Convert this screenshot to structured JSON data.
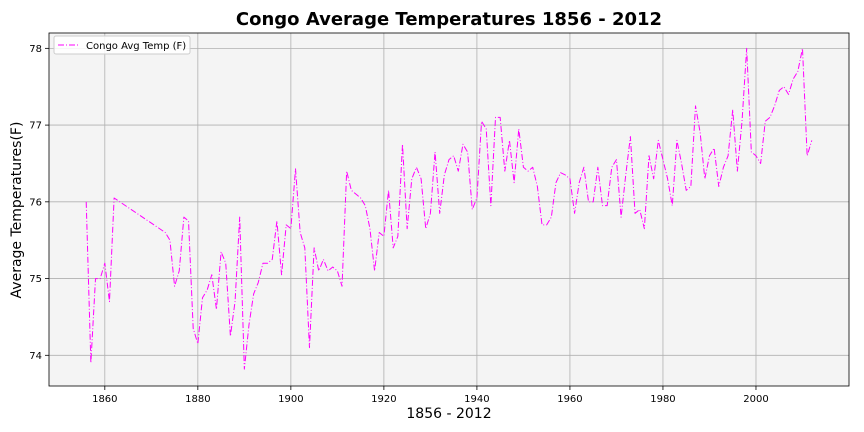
{
  "chart_data": {
    "type": "line",
    "title": "Congo Average Temperatures 1856 - 2012",
    "xlabel": "1856 - 2012",
    "ylabel": "Average Temperatures(F)",
    "xlim": [
      1848,
      2020
    ],
    "ylim": [
      73.6,
      78.2
    ],
    "xticks": [
      1860,
      1880,
      1900,
      1920,
      1940,
      1960,
      1980,
      2000
    ],
    "yticks": [
      74,
      75,
      76,
      77,
      78
    ],
    "grid": true,
    "legend_position": "top-left",
    "line_style": "dash-dot",
    "colors": {
      "line": "#ff00ff",
      "plot_bg": "#f4f4f4",
      "grid": "#b0b0b0"
    },
    "series": [
      {
        "name": "Congo Avg Temp (F)",
        "x": [
          1856,
          1857,
          1858,
          1859,
          1860,
          1861,
          1862,
          1873,
          1874,
          1875,
          1876,
          1877,
          1878,
          1879,
          1880,
          1881,
          1882,
          1883,
          1884,
          1885,
          1886,
          1887,
          1888,
          1889,
          1890,
          1891,
          1892,
          1893,
          1894,
          1895,
          1896,
          1897,
          1898,
          1899,
          1900,
          1901,
          1902,
          1903,
          1904,
          1905,
          1906,
          1907,
          1908,
          1909,
          1910,
          1911,
          1912,
          1913,
          1914,
          1915,
          1916,
          1917,
          1918,
          1919,
          1920,
          1921,
          1922,
          1923,
          1924,
          1925,
          1926,
          1927,
          1928,
          1929,
          1930,
          1931,
          1932,
          1933,
          1934,
          1935,
          1936,
          1937,
          1938,
          1939,
          1940,
          1941,
          1942,
          1943,
          1944,
          1945,
          1946,
          1947,
          1948,
          1949,
          1950,
          1951,
          1952,
          1953,
          1954,
          1955,
          1956,
          1957,
          1958,
          1959,
          1960,
          1961,
          1962,
          1963,
          1964,
          1965,
          1966,
          1967,
          1968,
          1969,
          1970,
          1971,
          1972,
          1973,
          1974,
          1975,
          1976,
          1977,
          1978,
          1979,
          1980,
          1981,
          1982,
          1983,
          1984,
          1985,
          1986,
          1987,
          1988,
          1989,
          1990,
          1991,
          1992,
          1993,
          1994,
          1995,
          1996,
          1997,
          1998,
          1999,
          2000,
          2001,
          2002,
          2003,
          2004,
          2005,
          2006,
          2007,
          2008,
          2009,
          2010,
          2011,
          2012
        ],
        "y": [
          76.0,
          73.9,
          75.0,
          75.0,
          75.2,
          74.7,
          76.05,
          75.6,
          75.5,
          74.9,
          75.1,
          75.8,
          75.75,
          74.35,
          74.15,
          74.75,
          74.85,
          75.05,
          74.6,
          75.35,
          75.2,
          74.25,
          74.7,
          75.8,
          73.82,
          74.4,
          74.8,
          74.95,
          75.2,
          75.2,
          75.25,
          75.75,
          75.05,
          75.7,
          75.65,
          76.43,
          75.6,
          75.4,
          74.1,
          75.4,
          75.1,
          75.25,
          75.1,
          75.15,
          75.1,
          74.9,
          76.4,
          76.15,
          76.1,
          76.05,
          75.95,
          75.65,
          75.1,
          75.6,
          75.55,
          76.15,
          75.4,
          75.55,
          76.75,
          75.65,
          76.3,
          76.45,
          76.3,
          75.65,
          75.85,
          76.65,
          75.85,
          76.35,
          76.55,
          76.6,
          76.4,
          76.75,
          76.65,
          75.9,
          76.05,
          77.05,
          76.95,
          75.95,
          77.1,
          77.1,
          76.4,
          76.8,
          76.25,
          76.95,
          76.45,
          76.4,
          76.45,
          76.2,
          75.7,
          75.7,
          75.8,
          76.25,
          76.38,
          76.35,
          76.3,
          75.85,
          76.25,
          76.45,
          76.0,
          76.0,
          76.45,
          75.95,
          75.95,
          76.45,
          76.55,
          75.8,
          76.35,
          76.85,
          75.85,
          75.9,
          75.65,
          76.6,
          76.3,
          76.8,
          76.55,
          76.3,
          75.95,
          76.8,
          76.5,
          76.15,
          76.2,
          77.25,
          76.9,
          76.3,
          76.6,
          76.7,
          76.2,
          76.45,
          76.6,
          77.2,
          76.4,
          77.05,
          78.0,
          76.65,
          76.6,
          76.5,
          77.05,
          77.1,
          77.25,
          77.45,
          77.5,
          77.4,
          77.6,
          77.7,
          78.0,
          76.6,
          76.8
        ]
      }
    ]
  }
}
